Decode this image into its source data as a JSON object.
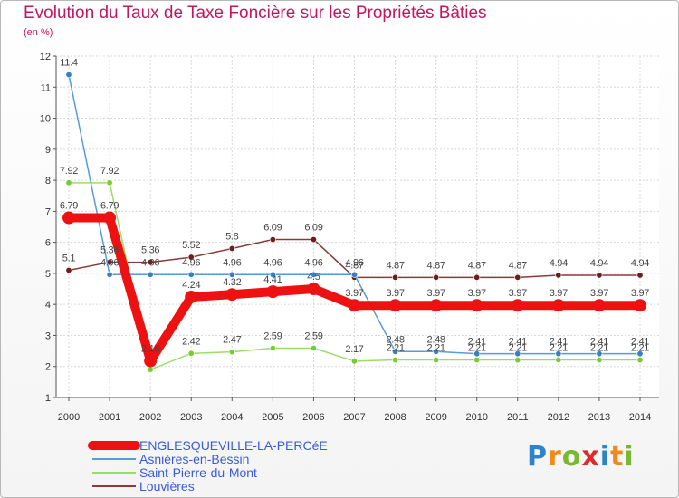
{
  "header": {
    "title": "Evolution du Taux de Taxe Foncière sur les Propriétés Bâties",
    "unit": "(en %)"
  },
  "logo": {
    "letters": [
      "P",
      "r",
      "o",
      "x",
      "i",
      "t",
      "i"
    ],
    "colors": [
      "#2f83c8",
      "#f08a1c",
      "#7ab833",
      "#e02a2a",
      "#2f83c8",
      "#f08a1c",
      "#7ab833"
    ]
  },
  "chart_data": {
    "type": "line",
    "title": "Evolution du Taux de Taxe Foncière sur les Propriétés Bâties",
    "ylabel": "(en %)",
    "xlabel": "",
    "ylim": [
      1,
      12
    ],
    "yticks": [
      1,
      2,
      3,
      4,
      5,
      6,
      7,
      8,
      9,
      10,
      11,
      12
    ],
    "categories": [
      "2000",
      "2001",
      "2002",
      "2003",
      "2004",
      "2005",
      "2006",
      "2007",
      "2008",
      "2009",
      "2010",
      "2011",
      "2012",
      "2013",
      "2014"
    ],
    "grid": true,
    "legend_position": "bottom-left",
    "series": [
      {
        "name": "ENGLESQUEVILLE-LA-PERCéE",
        "color": "#ee1111",
        "thick": true,
        "values": [
          6.79,
          6.79,
          2.18,
          4.24,
          4.32,
          4.41,
          4.5,
          3.97,
          3.97,
          3.97,
          3.97,
          3.97,
          3.97,
          3.97,
          3.97
        ],
        "labels": [
          "6.79",
          "6.79",
          "2.18",
          "4.24",
          "4.32",
          "4.41",
          "4.5",
          "3.97",
          "3.97",
          "3.97",
          "3.97",
          "3.97",
          "3.97",
          "3.97",
          "3.97"
        ]
      },
      {
        "name": "Asnières-en-Bessin",
        "color": "#5b9bd5",
        "marker": "#3a7fc0",
        "values": [
          11.4,
          4.96,
          4.96,
          4.96,
          4.96,
          4.96,
          4.96,
          4.96,
          2.48,
          2.48,
          2.41,
          2.41,
          2.41,
          2.41,
          2.41
        ],
        "labels": [
          "11.4",
          "4.96",
          "4.96",
          "4.96",
          "4.96",
          "4.96",
          "4.96",
          "4.96",
          "2.48",
          "2.48",
          "2.41",
          "2.41",
          "2.41",
          "2.41",
          "2.41"
        ]
      },
      {
        "name": "Saint-Pierre-du-Mont",
        "color": "#99dd66",
        "marker": "#77cc33",
        "values": [
          7.92,
          7.92,
          1.9,
          2.42,
          2.47,
          2.59,
          2.59,
          2.17,
          2.21,
          2.21,
          2.21,
          2.21,
          2.21,
          2.21,
          2.21
        ],
        "labels": [
          "7.92",
          "7.92",
          "",
          "2.42",
          "2.47",
          "2.59",
          "2.59",
          "2.17",
          "2.21",
          "2.21",
          "2.21",
          "2.21",
          "2.21",
          "2.21",
          "2.21"
        ]
      },
      {
        "name": "Louvières",
        "color": "#8b3a3a",
        "marker": "#6b1e1e",
        "values": [
          5.1,
          5.36,
          5.36,
          5.52,
          5.8,
          6.09,
          6.09,
          4.87,
          4.87,
          4.87,
          4.87,
          4.87,
          4.94,
          4.94,
          4.94
        ],
        "labels": [
          "5.1",
          "5.36",
          "5.36",
          "5.52",
          "5.8",
          "6.09",
          "6.09",
          "4.87",
          "4.87",
          "4.87",
          "4.87",
          "4.87",
          "4.94",
          "4.94",
          "4.94"
        ]
      }
    ]
  }
}
